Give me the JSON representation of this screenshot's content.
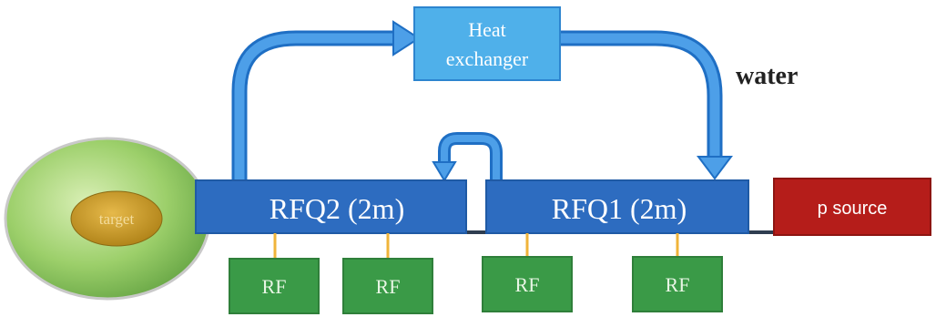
{
  "labels": {
    "heat_exchanger_line1": "Heat",
    "heat_exchanger_line2": "exchanger",
    "water": "water",
    "target": "target",
    "rfq2": "RFQ2 (2m)",
    "rfq1": "RFQ1 (2m)",
    "p_source": "p source",
    "rf_units": [
      "RF",
      "RF",
      "RF",
      "RF"
    ]
  },
  "colors": {
    "pipe": "#3d8fe0",
    "pipe_edge": "#1f6fc4",
    "heat_exchanger_fill": "#4fb0ea",
    "rfq_fill": "#2d6cc0",
    "p_source_fill": "#b51d1a",
    "rf_fill": "#3a9a47",
    "rf_edge": "#2f7f3a",
    "connector": "#f0b43a",
    "beamline": "#2e3d50",
    "target_outer": "#9ccf6a",
    "target_inner": "#c79a1e"
  }
}
